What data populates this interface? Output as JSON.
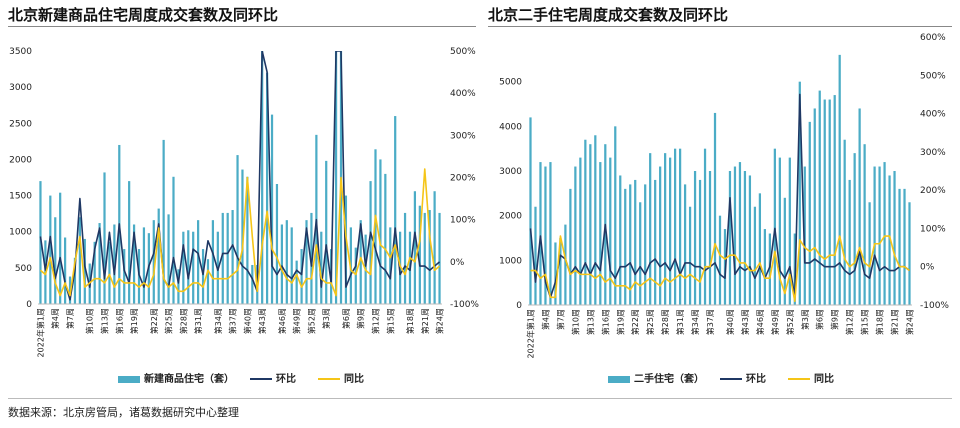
{
  "source_note": "数据来源：北京房管局，诸葛数据研究中心整理",
  "colors": {
    "bar": "#4BACC6",
    "mom": "#1F3864",
    "yoy": "#F5C518"
  },
  "chart_data": [
    {
      "type": "bar",
      "title": "北京新建商品住宅周度成交套数及同环比",
      "x_ticks": [
        "2022年第1周",
        "第4周",
        "第7周",
        "第10周",
        "第13周",
        "第16周",
        "第19周",
        "第22周",
        "第25周",
        "第28周",
        "第31周",
        "第34周",
        "第37周",
        "第40周",
        "第43周",
        "第46周",
        "第49周",
        "第52周",
        "第3周",
        "第6周",
        "第9周",
        "第12周",
        "第15周",
        "第18周",
        "第21周",
        "第24周"
      ],
      "ylim_left": [
        0,
        3500
      ],
      "yticks_left": [
        0,
        500,
        1000,
        1500,
        2000,
        2500,
        3000,
        3500
      ],
      "ylim_right": [
        -100,
        500
      ],
      "yticks_right": [
        "-100%",
        "0%",
        "100%",
        "200%",
        "300%",
        "400%",
        "500%"
      ],
      "legend": [
        "新建商品住宅（套）",
        "环比",
        "同比"
      ],
      "series": [
        {
          "name": "新建商品住宅（套）",
          "kind": "bar",
          "axis": "left",
          "values": [
            1700,
            880,
            1500,
            1200,
            1540,
            920,
            380,
            640,
            1200,
            900,
            560,
            860,
            1120,
            1820,
            860,
            1100,
            2200,
            760,
            1700,
            1100,
            760,
            1060,
            980,
            1160,
            1320,
            2270,
            1240,
            1760,
            480,
            1000,
            1020,
            1000,
            1160,
            760,
            620,
            1160,
            1000,
            1260,
            1260,
            1300,
            2060,
            1860,
            1760,
            540,
            540,
            3500,
            3200,
            2620,
            1660,
            1100,
            1160,
            1060,
            600,
            760,
            1160,
            1260,
            2340,
            1000,
            1980,
            760,
            3500,
            3500,
            1500,
            1060,
            780,
            1160,
            960,
            1700,
            2140,
            2000,
            1800,
            1060,
            2600,
            1000,
            1260,
            1000,
            1560,
            1360,
            1260,
            1300,
            1560,
            1260
          ]
        },
        {
          "name": "环比",
          "kind": "line",
          "axis": "right",
          "values": [
            60,
            -20,
            60,
            -40,
            10,
            -50,
            -90,
            -20,
            150,
            -10,
            -60,
            30,
            80,
            -40,
            70,
            -30,
            90,
            -20,
            -50,
            70,
            -30,
            -60,
            -10,
            20,
            90,
            -40,
            -60,
            10,
            -50,
            40,
            -40,
            30,
            20,
            -30,
            50,
            20,
            -20,
            20,
            20,
            40,
            10,
            -10,
            -20,
            -40,
            -70,
            500,
            450,
            -10,
            -30,
            -10,
            -30,
            -40,
            -20,
            -30,
            80,
            -10,
            100,
            -60,
            40,
            -50,
            500,
            500,
            -60,
            -30,
            -10,
            90,
            -10,
            70,
            30,
            -10,
            -20,
            -40,
            80,
            -30,
            -10,
            -20,
            70,
            -10,
            -10,
            -20,
            -10,
            0
          ]
        },
        {
          "name": "同比",
          "kind": "line",
          "axis": "right",
          "values": [
            -20,
            -30,
            10,
            -50,
            -80,
            -50,
            -80,
            0,
            60,
            -60,
            -50,
            -40,
            -40,
            -50,
            -30,
            -60,
            -40,
            -50,
            -50,
            -50,
            -60,
            -50,
            -60,
            -30,
            80,
            -40,
            -60,
            -50,
            -70,
            -70,
            -60,
            -50,
            -50,
            -60,
            -20,
            -40,
            -40,
            -40,
            -40,
            -30,
            -20,
            30,
            200,
            60,
            -70,
            40,
            120,
            30,
            10,
            -20,
            -40,
            -50,
            -30,
            -60,
            -40,
            -40,
            40,
            -40,
            -50,
            -50,
            -80,
            200,
            60,
            -20,
            -30,
            10,
            -20,
            -30,
            110,
            40,
            30,
            10,
            40,
            -10,
            -30,
            10,
            0,
            50,
            220,
            60,
            -20,
            -10
          ]
        }
      ]
    },
    {
      "type": "bar",
      "title": "北京二手住宅周度成交套数及同环比",
      "x_ticks": [
        "2022年第1周",
        "第4周",
        "第7周",
        "第10周",
        "第13周",
        "第16周",
        "第19周",
        "第22周",
        "第25周",
        "第28周",
        "第31周",
        "第34周",
        "第37周",
        "第40周",
        "第43周",
        "第46周",
        "第49周",
        "第52周",
        "第3周",
        "第6周",
        "第9周",
        "第12周",
        "第15周",
        "第18周",
        "第21周",
        "第24周"
      ],
      "ylim_left": [
        0,
        6000
      ],
      "yticks_left": [
        0,
        1000,
        2000,
        3000,
        4000,
        5000
      ],
      "ylim_right": [
        -100,
        600
      ],
      "yticks_right": [
        "-100%",
        "0%",
        "100%",
        "200%",
        "300%",
        "400%",
        "500%",
        "600%"
      ],
      "legend": [
        "二手住宅（套）",
        "环比",
        "同比"
      ],
      "series": [
        {
          "name": "二手住宅（套）",
          "kind": "bar",
          "axis": "left",
          "values": [
            4200,
            2200,
            3200,
            3100,
            3200,
            1400,
            1500,
            1800,
            2600,
            3100,
            3300,
            3700,
            3600,
            3800,
            3200,
            3600,
            3300,
            4000,
            2900,
            2600,
            2700,
            2800,
            2300,
            2700,
            3400,
            2800,
            3100,
            3400,
            3300,
            3500,
            3500,
            2700,
            2200,
            3000,
            2800,
            3500,
            3000,
            4300,
            2000,
            1700,
            3000,
            3100,
            3200,
            3000,
            2900,
            2200,
            2500,
            1700,
            1600,
            3500,
            3300,
            2400,
            3300,
            1600,
            5000,
            3100,
            4100,
            4400,
            4800,
            4600,
            4600,
            4700,
            5600,
            3700,
            2800,
            3400,
            4400,
            3600,
            2300,
            3100,
            3100,
            3200,
            2900,
            3000,
            2600,
            2600,
            2300
          ]
        },
        {
          "name": "环比",
          "kind": "line",
          "axis": "right",
          "values": [
            100,
            -40,
            80,
            -40,
            -80,
            -40,
            30,
            20,
            -20,
            0,
            -20,
            10,
            -20,
            10,
            -10,
            110,
            -10,
            -30,
            0,
            0,
            10,
            -20,
            0,
            -20,
            10,
            20,
            0,
            10,
            -10,
            20,
            -20,
            10,
            10,
            0,
            0,
            -10,
            0,
            10,
            -20,
            -30,
            180,
            -20,
            0,
            -10,
            0,
            -30,
            0,
            -30,
            0,
            100,
            -10,
            -30,
            0,
            -80,
            450,
            10,
            10,
            20,
            10,
            0,
            0,
            0,
            10,
            -10,
            -20,
            -10,
            40,
            -20,
            -30,
            30,
            -10,
            0,
            -10,
            -10,
            0,
            0,
            -10
          ]
        },
        {
          "name": "同比",
          "kind": "line",
          "axis": "right",
          "values": [
            -10,
            -10,
            -30,
            -20,
            -80,
            -80,
            80,
            20,
            -20,
            -10,
            -20,
            -20,
            -20,
            -30,
            -20,
            -40,
            -30,
            -50,
            -50,
            -50,
            -60,
            -40,
            -50,
            -40,
            -30,
            -40,
            -50,
            -30,
            -40,
            -30,
            -20,
            -30,
            -20,
            -30,
            -40,
            0,
            0,
            60,
            30,
            20,
            30,
            30,
            10,
            10,
            -10,
            -10,
            10,
            -30,
            -30,
            40,
            -30,
            -70,
            -20,
            -90,
            70,
            50,
            40,
            50,
            30,
            20,
            30,
            30,
            80,
            20,
            0,
            10,
            50,
            10,
            0,
            60,
            60,
            80,
            80,
            30,
            0,
            0,
            -10
          ]
        }
      ]
    }
  ]
}
